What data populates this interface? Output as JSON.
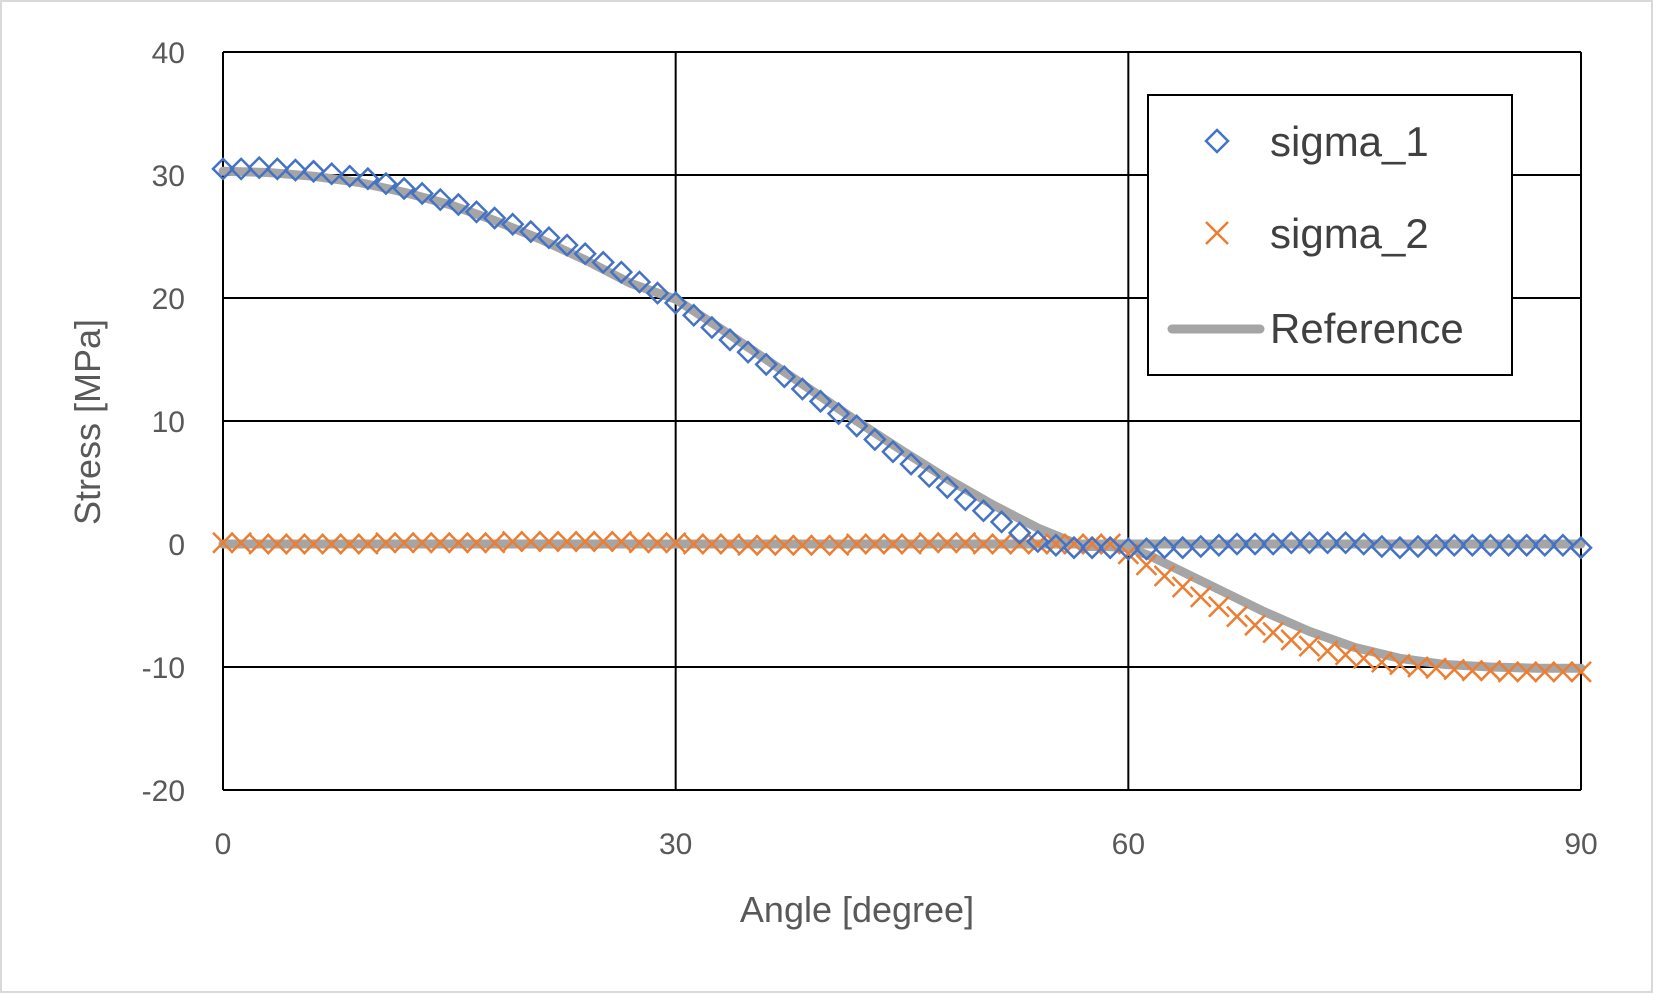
{
  "chart_data": {
    "type": "scatter",
    "title": "",
    "xlabel": "Angle [degree]",
    "ylabel": "Stress [MPa]",
    "xlim": [
      0,
      90
    ],
    "ylim": [
      -20,
      40
    ],
    "xticks": [
      0,
      30,
      60,
      90
    ],
    "yticks": [
      -20,
      -10,
      0,
      10,
      20,
      30,
      40
    ],
    "xtick_labels": [
      "0",
      "30",
      "60",
      "90"
    ],
    "ytick_labels": [
      "-20",
      "-10",
      "0",
      "10",
      "20",
      "30",
      "40"
    ],
    "grid": true,
    "legend_position": "top-right",
    "colors": {
      "sigma_1": "#4472c4",
      "sigma_2": "#ed7d31",
      "reference": "#a5a5a5"
    },
    "series": [
      {
        "name": "sigma_1",
        "marker": "diamond",
        "x": [
          0,
          1.2,
          2.4,
          3.6,
          4.8,
          6,
          7.2,
          8.4,
          9.6,
          10.8,
          12,
          13.2,
          14.4,
          15.6,
          16.8,
          18,
          19.2,
          20.4,
          21.6,
          22.8,
          24,
          25.2,
          26.4,
          27.6,
          28.8,
          30,
          31.2,
          32.4,
          33.6,
          34.8,
          36,
          37.2,
          38.4,
          39.6,
          40.8,
          42,
          43.2,
          44.4,
          45.6,
          46.8,
          48,
          49.2,
          50.4,
          51.6,
          52.8,
          54,
          55.2,
          56.4,
          57.6,
          58.8,
          60,
          61.2,
          62.4,
          63.6,
          64.8,
          66,
          67.2,
          68.4,
          69.6,
          70.8,
          72,
          73.2,
          74.4,
          75.6,
          76.8,
          78,
          79.2,
          80.4,
          81.6,
          82.8,
          84,
          85.2,
          86.4,
          87.6,
          88.8,
          90
        ],
        "y": [
          30.5,
          30.5,
          30.6,
          30.5,
          30.4,
          30.3,
          30.1,
          29.9,
          29.7,
          29.3,
          28.9,
          28.5,
          28.0,
          27.6,
          27.0,
          26.5,
          26.0,
          25.4,
          24.9,
          24.3,
          23.6,
          22.9,
          22.1,
          21.3,
          20.4,
          19.6,
          18.6,
          17.6,
          16.6,
          15.6,
          14.6,
          13.6,
          12.6,
          11.6,
          10.6,
          9.6,
          8.5,
          7.5,
          6.5,
          5.5,
          4.6,
          3.6,
          2.7,
          1.8,
          0.9,
          0.2,
          -0.1,
          -0.3,
          -0.3,
          -0.3,
          -0.4,
          -0.4,
          -0.3,
          -0.3,
          -0.2,
          -0.1,
          0.0,
          0.0,
          0.0,
          0.1,
          0.1,
          0.1,
          0.1,
          0.0,
          -0.2,
          -0.3,
          -0.2,
          -0.1,
          -0.1,
          -0.1,
          -0.1,
          -0.1,
          -0.1,
          -0.1,
          -0.1,
          -0.3
        ]
      },
      {
        "name": "sigma_2",
        "marker": "x",
        "x": [
          0,
          1.2,
          2.4,
          3.6,
          4.8,
          6,
          7.2,
          8.4,
          9.6,
          10.8,
          12,
          13.2,
          14.4,
          15.6,
          16.8,
          18,
          19.2,
          20.4,
          21.6,
          22.8,
          24,
          25.2,
          26.4,
          27.6,
          28.8,
          30,
          31.2,
          32.4,
          33.6,
          34.8,
          36,
          37.2,
          38.4,
          39.6,
          40.8,
          42,
          43.2,
          44.4,
          45.6,
          46.8,
          48,
          49.2,
          50.4,
          51.6,
          52.8,
          54,
          55.2,
          56.4,
          57.6,
          58.8,
          60,
          61.2,
          62.4,
          63.6,
          64.8,
          66,
          67.2,
          68.4,
          69.6,
          70.8,
          72,
          73.2,
          74.4,
          75.6,
          76.8,
          78,
          79.2,
          80.4,
          81.6,
          82.8,
          84,
          85.2,
          86.4,
          87.6,
          88.8,
          90
        ],
        "y": [
          0.1,
          0.1,
          0.0,
          0.0,
          0.0,
          0.0,
          0.0,
          0.0,
          0.0,
          0.1,
          0.1,
          0.1,
          0.1,
          0.1,
          0.1,
          0.1,
          0.2,
          0.2,
          0.2,
          0.2,
          0.2,
          0.2,
          0.2,
          0.1,
          0.1,
          0.1,
          0.0,
          0.0,
          0.0,
          -0.1,
          -0.1,
          -0.1,
          -0.1,
          -0.1,
          -0.1,
          0.0,
          0.0,
          0.0,
          0.0,
          0.1,
          0.1,
          0.1,
          0.0,
          0.0,
          0.0,
          0.0,
          0.0,
          0.0,
          0.0,
          0.0,
          -0.8,
          -1.7,
          -2.6,
          -3.5,
          -4.3,
          -5.1,
          -5.9,
          -6.6,
          -7.2,
          -7.8,
          -8.3,
          -8.7,
          -9.0,
          -9.3,
          -9.6,
          -9.8,
          -10.0,
          -10.1,
          -10.2,
          -10.3,
          -10.3,
          -10.4,
          -10.4,
          -10.4,
          -10.4,
          -10.4
        ]
      },
      {
        "name": "Reference",
        "marker": "line",
        "x": [
          0,
          3,
          6,
          9,
          12,
          15,
          18,
          21,
          24,
          27,
          30,
          33,
          36,
          39,
          42,
          45,
          48,
          51,
          54,
          57,
          58.5,
          60,
          61.5,
          63,
          66,
          69,
          72,
          75,
          78,
          81,
          84,
          87,
          90
        ],
        "y": [
          30.3,
          30.2,
          29.9,
          29.4,
          28.6,
          27.6,
          26.3,
          24.8,
          23.1,
          21.2,
          19.9,
          17.5,
          15.0,
          12.5,
          10.0,
          7.6,
          5.3,
          3.2,
          1.3,
          -0.2,
          -0.2,
          -0.3,
          -1.0,
          -1.9,
          -3.7,
          -5.5,
          -7.1,
          -8.4,
          -9.3,
          -9.8,
          -10.0,
          -10.1,
          -10.1
        ],
        "y2": [
          0.0,
          0.0,
          0.0,
          0.0,
          0.0,
          0.0,
          0.0,
          0.0,
          0.0,
          0.0,
          0.0,
          0.0,
          0.0,
          0.0,
          0.0,
          0.0,
          0.0,
          0.0,
          0.0,
          0.0,
          0.0,
          0.0,
          0.0,
          0.0,
          0.0,
          0.0,
          0.0,
          0.0,
          0.0,
          0.0,
          0.0,
          0.0,
          0.0
        ]
      }
    ]
  }
}
